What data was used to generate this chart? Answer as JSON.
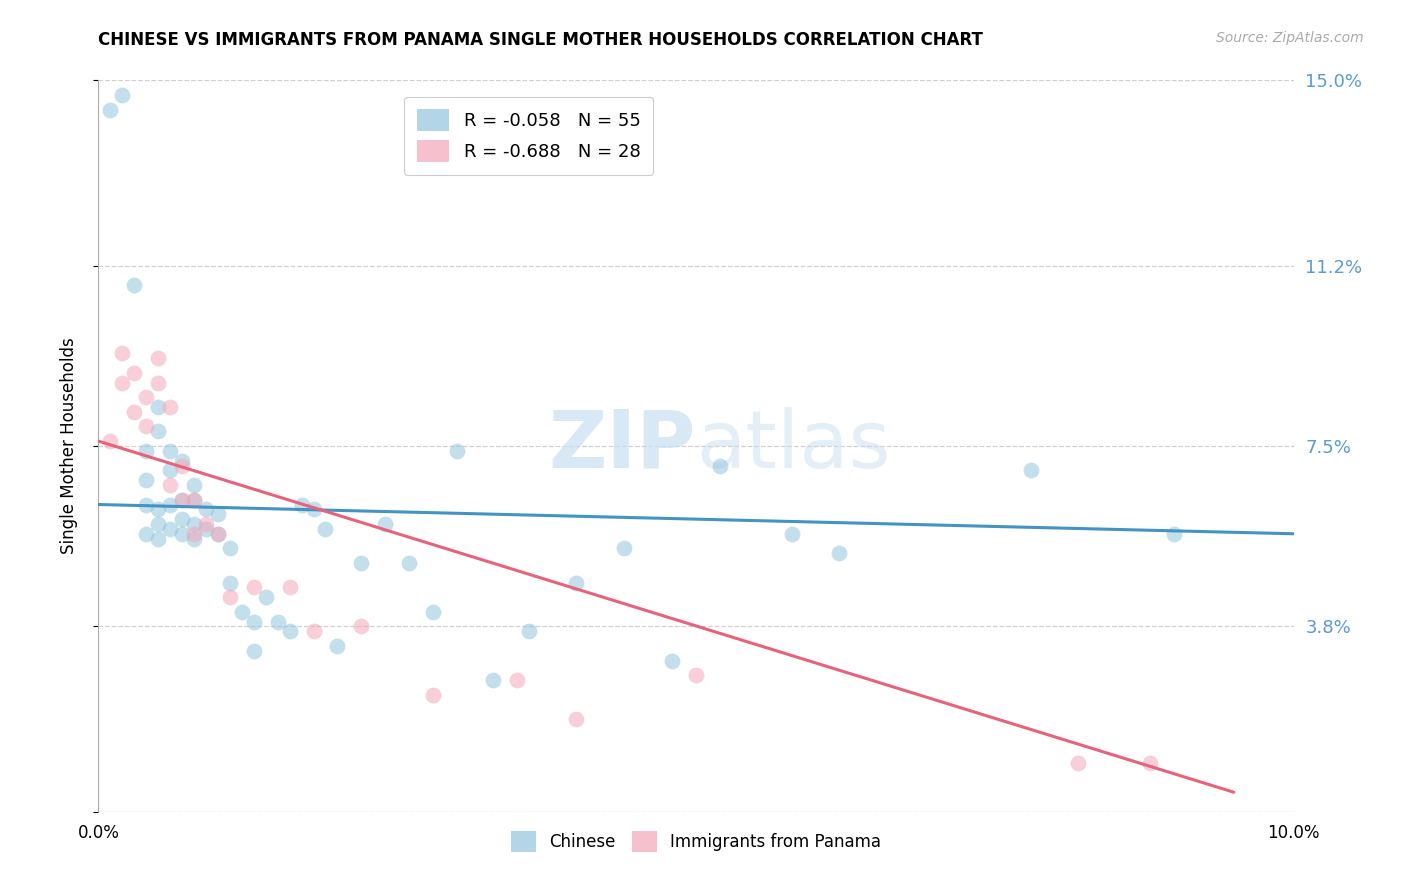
{
  "title": "CHINESE VS IMMIGRANTS FROM PANAMA SINGLE MOTHER HOUSEHOLDS CORRELATION CHART",
  "source": "Source: ZipAtlas.com",
  "ylabel": "Single Mother Households",
  "xlim": [
    0.0,
    0.1
  ],
  "ylim": [
    0.0,
    0.15
  ],
  "yticks": [
    0.0,
    0.038,
    0.075,
    0.112,
    0.15
  ],
  "ytick_labels": [
    "",
    "3.8%",
    "7.5%",
    "11.2%",
    "15.0%"
  ],
  "xticks": [
    0.0,
    0.02,
    0.04,
    0.06,
    0.08,
    0.1
  ],
  "xtick_labels": [
    "0.0%",
    "",
    "",
    "",
    "",
    "10.0%"
  ],
  "watermark_zip": "ZIP",
  "watermark_atlas": "atlas",
  "legend_blue_R": "R = -0.058",
  "legend_blue_N": "N = 55",
  "legend_pink_R": "R = -0.688",
  "legend_pink_N": "N = 28",
  "blue_color": "#92c5de",
  "pink_color": "#f4a6b8",
  "line_blue": "#4393c3",
  "line_pink": "#e8637a",
  "axis_label_color": "#5b9bd5",
  "chinese_x": [
    0.001,
    0.002,
    0.003,
    0.004,
    0.004,
    0.004,
    0.004,
    0.005,
    0.005,
    0.005,
    0.005,
    0.005,
    0.006,
    0.006,
    0.006,
    0.006,
    0.007,
    0.007,
    0.007,
    0.007,
    0.008,
    0.008,
    0.008,
    0.008,
    0.009,
    0.009,
    0.01,
    0.01,
    0.011,
    0.011,
    0.012,
    0.013,
    0.013,
    0.014,
    0.015,
    0.016,
    0.017,
    0.018,
    0.019,
    0.02,
    0.022,
    0.024,
    0.026,
    0.028,
    0.03,
    0.033,
    0.036,
    0.04,
    0.044,
    0.048,
    0.052,
    0.058,
    0.062,
    0.078,
    0.09
  ],
  "chinese_y": [
    0.144,
    0.147,
    0.108,
    0.074,
    0.068,
    0.063,
    0.057,
    0.083,
    0.078,
    0.062,
    0.059,
    0.056,
    0.074,
    0.07,
    0.063,
    0.058,
    0.072,
    0.064,
    0.06,
    0.057,
    0.067,
    0.064,
    0.059,
    0.056,
    0.062,
    0.058,
    0.061,
    0.057,
    0.054,
    0.047,
    0.041,
    0.039,
    0.033,
    0.044,
    0.039,
    0.037,
    0.063,
    0.062,
    0.058,
    0.034,
    0.051,
    0.059,
    0.051,
    0.041,
    0.074,
    0.027,
    0.037,
    0.047,
    0.054,
    0.031,
    0.071,
    0.057,
    0.053,
    0.07,
    0.057
  ],
  "panama_x": [
    0.001,
    0.002,
    0.002,
    0.003,
    0.003,
    0.004,
    0.004,
    0.005,
    0.005,
    0.006,
    0.006,
    0.007,
    0.007,
    0.008,
    0.008,
    0.009,
    0.01,
    0.011,
    0.013,
    0.016,
    0.018,
    0.022,
    0.028,
    0.035,
    0.04,
    0.05,
    0.082,
    0.088
  ],
  "panama_y": [
    0.076,
    0.094,
    0.088,
    0.09,
    0.082,
    0.085,
    0.079,
    0.093,
    0.088,
    0.083,
    0.067,
    0.071,
    0.064,
    0.064,
    0.057,
    0.059,
    0.057,
    0.044,
    0.046,
    0.046,
    0.037,
    0.038,
    0.024,
    0.027,
    0.019,
    0.028,
    0.01,
    0.01
  ],
  "blue_line_x0": 0.0,
  "blue_line_x1": 0.1,
  "blue_line_y0": 0.063,
  "blue_line_y1": 0.057,
  "pink_line_x0": 0.0,
  "pink_line_x1": 0.095,
  "pink_line_y0": 0.076,
  "pink_line_y1": 0.004
}
